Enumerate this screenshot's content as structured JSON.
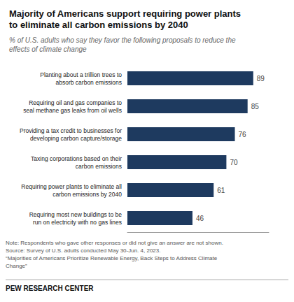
{
  "chart_data": {
    "type": "bar",
    "orientation": "horizontal",
    "title": "Majority of Americans support requiring power plants\nto eliminate all carbon emissions by 2040",
    "subtitle": "% of U.S. adults who say they favor the following proposals to reduce the\neffects of climate change",
    "categories": [
      "Planting about a trillion trees to\nabsorb carbon emissions",
      "Requiring oil and gas companies to\nseal methane gas leaks from oil wells",
      "Providing a tax credit to businesses for\ndeveloping carbon capture/storage",
      "Taxing corporations based on their\ncarbon emissions",
      "Requiring power plants to eliminate all\ncarbon emissions by 2040",
      "Requiring most new buildings to be\nrun on electricity with no gas lines"
    ],
    "values": [
      89,
      85,
      76,
      70,
      61,
      46
    ],
    "color": "#1e3a5f",
    "xlim": [
      0,
      100
    ],
    "grid": false,
    "data_labels": true,
    "tick_labels": "y",
    "annotations": [
      "Note: Respondents who gave other responses or did not give an answer are not shown.\nSource: Survey of U.S. adults conducted May 30-Jun. 4, 2023.\n“Majorities of Americans Prioritize Renewable Energy, Back Steps to Address Climate\nChange”",
      "PEW RESEARCH CENTER"
    ]
  }
}
